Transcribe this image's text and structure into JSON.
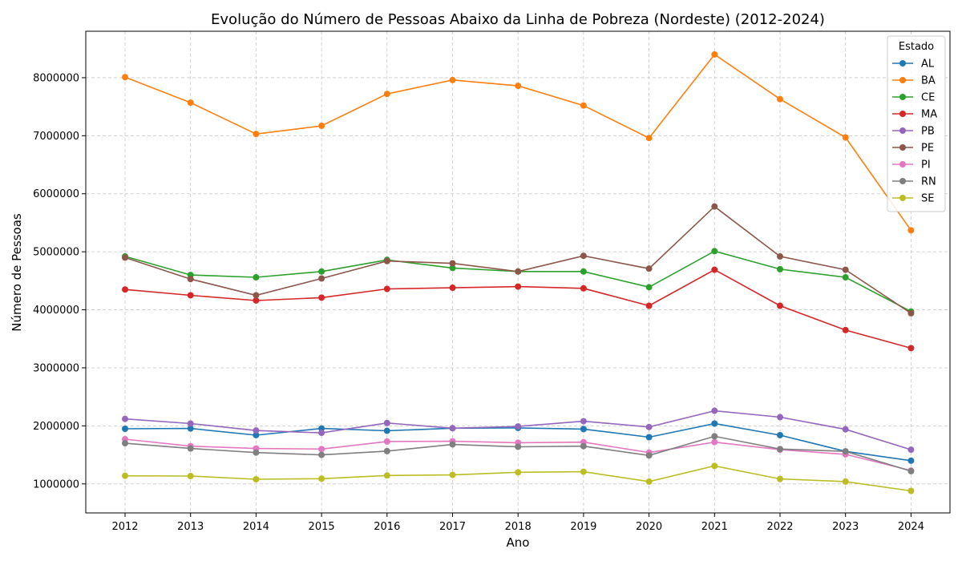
{
  "chart_data": {
    "type": "line",
    "title": "Evolução do Número de Pessoas Abaixo da Linha de Pobreza (Nordeste) (2012-2024)",
    "xlabel": "Ano",
    "ylabel": "Número de Pessoas",
    "x": [
      "2012",
      "2013",
      "2014",
      "2015",
      "2016",
      "2017",
      "2018",
      "2019",
      "2020",
      "2021",
      "2022",
      "2023",
      "2024"
    ],
    "ylim": [
      500000,
      8800000
    ],
    "yticks": [
      1000000,
      2000000,
      3000000,
      4000000,
      5000000,
      6000000,
      7000000,
      8000000
    ],
    "ytick_labels": [
      "1000000",
      "2000000",
      "3000000",
      "4000000",
      "5000000",
      "6000000",
      "7000000",
      "8000000"
    ],
    "grid": true,
    "legend": {
      "title": "Estado",
      "placement": "top-right"
    },
    "series": [
      {
        "name": "AL",
        "color": "#1f77b4",
        "values": [
          1950000,
          1955000,
          1840000,
          1955000,
          1915000,
          1960000,
          1965000,
          1945000,
          1805000,
          2040000,
          1840000,
          1560000,
          1400000
        ]
      },
      {
        "name": "BA",
        "color": "#ff7f0e",
        "values": [
          8010000,
          7570000,
          7030000,
          7170000,
          7720000,
          7960000,
          7860000,
          7520000,
          6960000,
          8400000,
          7630000,
          6970000,
          5370000
        ]
      },
      {
        "name": "CE",
        "color": "#2ca02c",
        "values": [
          4920000,
          4600000,
          4560000,
          4660000,
          4860000,
          4720000,
          4660000,
          4660000,
          4390000,
          5010000,
          4700000,
          4560000,
          3970000
        ]
      },
      {
        "name": "MA",
        "color": "#d62728",
        "values": [
          4350000,
          4250000,
          4160000,
          4210000,
          4360000,
          4380000,
          4400000,
          4370000,
          4070000,
          4690000,
          4070000,
          3650000,
          3340000
        ]
      },
      {
        "name": "PB",
        "color": "#9467bd",
        "values": [
          2120000,
          2040000,
          1920000,
          1880000,
          2050000,
          1960000,
          1990000,
          2080000,
          1980000,
          2260000,
          2150000,
          1940000,
          1590000
        ]
      },
      {
        "name": "PE",
        "color": "#8c564b",
        "values": [
          4900000,
          4530000,
          4250000,
          4540000,
          4840000,
          4800000,
          4660000,
          4930000,
          4710000,
          5780000,
          4920000,
          4690000,
          3940000
        ]
      },
      {
        "name": "PI",
        "color": "#e377c2",
        "values": [
          1770000,
          1650000,
          1610000,
          1600000,
          1730000,
          1735000,
          1710000,
          1720000,
          1540000,
          1720000,
          1590000,
          1510000,
          1230000
        ]
      },
      {
        "name": "RN",
        "color": "#7f7f7f",
        "values": [
          1700000,
          1610000,
          1540000,
          1500000,
          1565000,
          1680000,
          1640000,
          1650000,
          1490000,
          1820000,
          1600000,
          1560000,
          1220000
        ]
      },
      {
        "name": "SE",
        "color": "#bcbd22",
        "values": [
          1140000,
          1135000,
          1080000,
          1090000,
          1145000,
          1155000,
          1200000,
          1210000,
          1040000,
          1310000,
          1085000,
          1040000,
          880000
        ]
      }
    ]
  }
}
